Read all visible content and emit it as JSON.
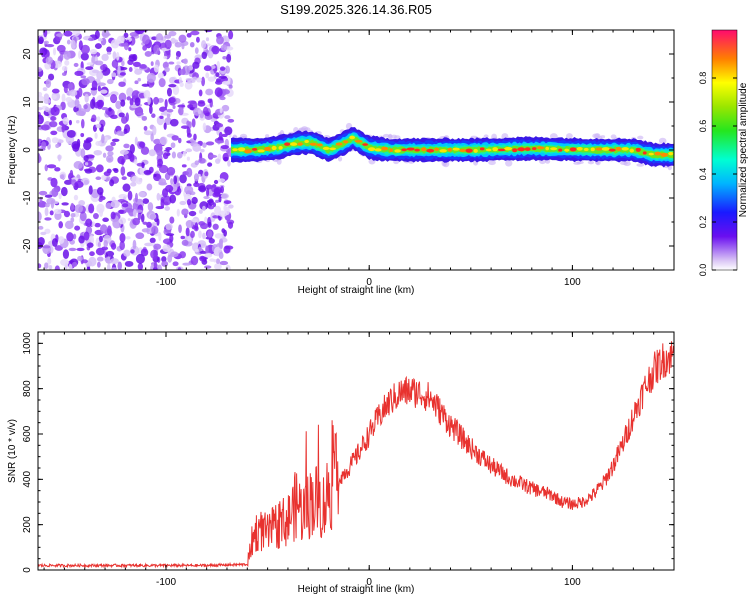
{
  "title": "S199.2025.326.14.36.R05",
  "chart_data": [
    {
      "type": "heatmap",
      "xlabel": "Height of straight line (km)",
      "ylabel": "Frequency (Hz)",
      "xlim": [
        -163,
        150
      ],
      "ylim": [
        -25,
        25
      ],
      "xticks": [
        "-100",
        "0",
        "100"
      ],
      "yticks": [
        "-20",
        "-10",
        "0",
        "10",
        "20"
      ],
      "colorbar": {
        "label": "Normalized spectral amplitude",
        "range": [
          0,
          1
        ],
        "ticks": [
          "0.0",
          "0.2",
          "0.4",
          "0.6",
          "0.8"
        ]
      },
      "description_regions": {
        "noise_region_x": [
          -163,
          -68
        ],
        "signal_region_x": [
          -68,
          150
        ]
      },
      "ridge": [
        {
          "x": -68,
          "y": 0
        },
        {
          "x": -55,
          "y": 0
        },
        {
          "x": -45,
          "y": 0.5
        },
        {
          "x": -35,
          "y": 1.5
        },
        {
          "x": -28,
          "y": 1.5
        },
        {
          "x": -20,
          "y": 0
        },
        {
          "x": -12,
          "y": 1.5
        },
        {
          "x": -8,
          "y": 2.5
        },
        {
          "x": 0,
          "y": 0.5
        },
        {
          "x": 10,
          "y": 0
        },
        {
          "x": 50,
          "y": 0
        },
        {
          "x": 80,
          "y": 0.3
        },
        {
          "x": 110,
          "y": 0
        },
        {
          "x": 130,
          "y": 0
        },
        {
          "x": 140,
          "y": -1
        },
        {
          "x": 150,
          "y": -1
        }
      ]
    },
    {
      "type": "line",
      "xlabel": "Height of straight line (km)",
      "ylabel": "SNR (10 * v/v)",
      "xlim": [
        -163,
        150
      ],
      "ylim": [
        0,
        1050
      ],
      "xticks": [
        "-100",
        "0",
        "100"
      ],
      "yticks": [
        "0",
        "200",
        "400",
        "600",
        "800",
        "1000"
      ],
      "color": "#e8322f",
      "series": [
        {
          "x": [
            -163,
            -120,
            -80,
            -60,
            -58,
            -55,
            -50,
            -45,
            -40,
            -38,
            -35,
            -33,
            -30,
            -28,
            -25,
            -22,
            -20,
            -15,
            -10,
            -5,
            0,
            5,
            10,
            15,
            20,
            25,
            30,
            35,
            40,
            50,
            60,
            70,
            80,
            90,
            95,
            100,
            105,
            110,
            115,
            120,
            125,
            130,
            135,
            140,
            145,
            150
          ],
          "values": [
            20,
            20,
            20,
            25,
            120,
            180,
            160,
            200,
            220,
            260,
            300,
            250,
            280,
            320,
            300,
            280,
            360,
            400,
            450,
            520,
            600,
            680,
            740,
            780,
            790,
            780,
            760,
            700,
            640,
            540,
            460,
            400,
            360,
            330,
            300,
            290,
            300,
            330,
            380,
            460,
            560,
            680,
            790,
            880,
            930,
            950
          ]
        }
      ]
    }
  ]
}
